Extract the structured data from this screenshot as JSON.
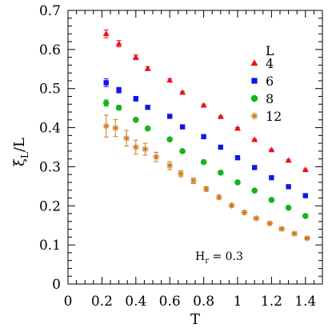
{
  "chart_data": {
    "type": "scatter",
    "title": "",
    "xlabel": "T",
    "ylabel_main": "ξ",
    "ylabel_sub": "L",
    "ylabel_rest": "/L",
    "xlim": [
      0,
      1.5
    ],
    "ylim": [
      0,
      0.7
    ],
    "x_ticks": [
      0,
      0.2,
      0.4,
      0.6,
      0.8,
      1,
      1.2,
      1.4
    ],
    "y_ticks": [
      0,
      0.1,
      0.2,
      0.3,
      0.4,
      0.5,
      0.6,
      0.7
    ],
    "grid": false,
    "legend": {
      "title": "L",
      "placement": "top-right",
      "entries": [
        "4",
        "6",
        "8",
        "12"
      ]
    },
    "annotation": {
      "main": "H",
      "sub": "r",
      "rest": " = 0.3"
    },
    "series": [
      {
        "name": "4",
        "marker": "triangle",
        "color": "#e8121c",
        "points": [
          {
            "x": 0.225,
            "y": 0.64,
            "err": 0.01
          },
          {
            "x": 0.3,
            "y": 0.615,
            "err": 0.008
          },
          {
            "x": 0.4,
            "y": 0.58,
            "err": 0.006
          },
          {
            "x": 0.47,
            "y": 0.551,
            "err": 0.005
          },
          {
            "x": 0.6,
            "y": 0.521,
            "err": 0.004
          },
          {
            "x": 0.675,
            "y": 0.49,
            "err": 0.003
          },
          {
            "x": 0.8,
            "y": 0.457,
            "err": 0.003
          },
          {
            "x": 0.9,
            "y": 0.428,
            "err": 0.002
          },
          {
            "x": 1.0,
            "y": 0.398,
            "err": 0.002
          },
          {
            "x": 1.1,
            "y": 0.369,
            "err": 0.002
          },
          {
            "x": 1.2,
            "y": 0.343,
            "err": 0.002
          },
          {
            "x": 1.3,
            "y": 0.316,
            "err": 0.002
          },
          {
            "x": 1.4,
            "y": 0.292,
            "err": 0.002
          }
        ]
      },
      {
        "name": "6",
        "marker": "square",
        "color": "#1414e6",
        "points": [
          {
            "x": 0.225,
            "y": 0.515,
            "err": 0.01
          },
          {
            "x": 0.3,
            "y": 0.496,
            "err": 0.007
          },
          {
            "x": 0.4,
            "y": 0.474,
            "err": 0.006
          },
          {
            "x": 0.47,
            "y": 0.452,
            "err": 0.004
          },
          {
            "x": 0.6,
            "y": 0.429,
            "err": 0.004
          },
          {
            "x": 0.675,
            "y": 0.402,
            "err": 0.003
          },
          {
            "x": 0.8,
            "y": 0.377,
            "err": 0.003
          },
          {
            "x": 0.9,
            "y": 0.35,
            "err": 0.002
          },
          {
            "x": 1.0,
            "y": 0.323,
            "err": 0.002
          },
          {
            "x": 1.1,
            "y": 0.298,
            "err": 0.002
          },
          {
            "x": 1.2,
            "y": 0.272,
            "err": 0.002
          },
          {
            "x": 1.3,
            "y": 0.249,
            "err": 0.002
          },
          {
            "x": 1.4,
            "y": 0.226,
            "err": 0.002
          }
        ]
      },
      {
        "name": "8",
        "marker": "circle",
        "color": "#12b51a",
        "points": [
          {
            "x": 0.225,
            "y": 0.463,
            "err": 0.008
          },
          {
            "x": 0.3,
            "y": 0.451,
            "err": 0.006
          },
          {
            "x": 0.4,
            "y": 0.42,
            "err": 0.005
          },
          {
            "x": 0.47,
            "y": 0.398,
            "err": 0.004
          },
          {
            "x": 0.6,
            "y": 0.37,
            "err": 0.004
          },
          {
            "x": 0.675,
            "y": 0.34,
            "err": 0.003
          },
          {
            "x": 0.8,
            "y": 0.312,
            "err": 0.003
          },
          {
            "x": 0.9,
            "y": 0.285,
            "err": 0.002
          },
          {
            "x": 1.0,
            "y": 0.26,
            "err": 0.002
          },
          {
            "x": 1.1,
            "y": 0.239,
            "err": 0.002
          },
          {
            "x": 1.2,
            "y": 0.215,
            "err": 0.002
          },
          {
            "x": 1.3,
            "y": 0.195,
            "err": 0.002
          },
          {
            "x": 1.4,
            "y": 0.174,
            "err": 0.002
          }
        ]
      },
      {
        "name": "12",
        "marker": "asterisk",
        "color": "#cc7a22",
        "points": [
          {
            "x": 0.225,
            "y": 0.404,
            "err": 0.028
          },
          {
            "x": 0.28,
            "y": 0.399,
            "err": 0.022
          },
          {
            "x": 0.345,
            "y": 0.373,
            "err": 0.02
          },
          {
            "x": 0.4,
            "y": 0.35,
            "err": 0.018
          },
          {
            "x": 0.455,
            "y": 0.345,
            "err": 0.015
          },
          {
            "x": 0.52,
            "y": 0.325,
            "err": 0.012
          },
          {
            "x": 0.6,
            "y": 0.303,
            "err": 0.01
          },
          {
            "x": 0.665,
            "y": 0.282,
            "err": 0.008
          },
          {
            "x": 0.74,
            "y": 0.264,
            "err": 0.007
          },
          {
            "x": 0.815,
            "y": 0.243,
            "err": 0.006
          },
          {
            "x": 0.89,
            "y": 0.222,
            "err": 0.005
          },
          {
            "x": 0.965,
            "y": 0.201,
            "err": 0.004
          },
          {
            "x": 1.04,
            "y": 0.183,
            "err": 0.004
          },
          {
            "x": 1.11,
            "y": 0.168,
            "err": 0.003
          },
          {
            "x": 1.19,
            "y": 0.155,
            "err": 0.003
          },
          {
            "x": 1.26,
            "y": 0.141,
            "err": 0.003
          },
          {
            "x": 1.335,
            "y": 0.129,
            "err": 0.003
          },
          {
            "x": 1.41,
            "y": 0.117,
            "err": 0.002
          }
        ]
      }
    ]
  }
}
